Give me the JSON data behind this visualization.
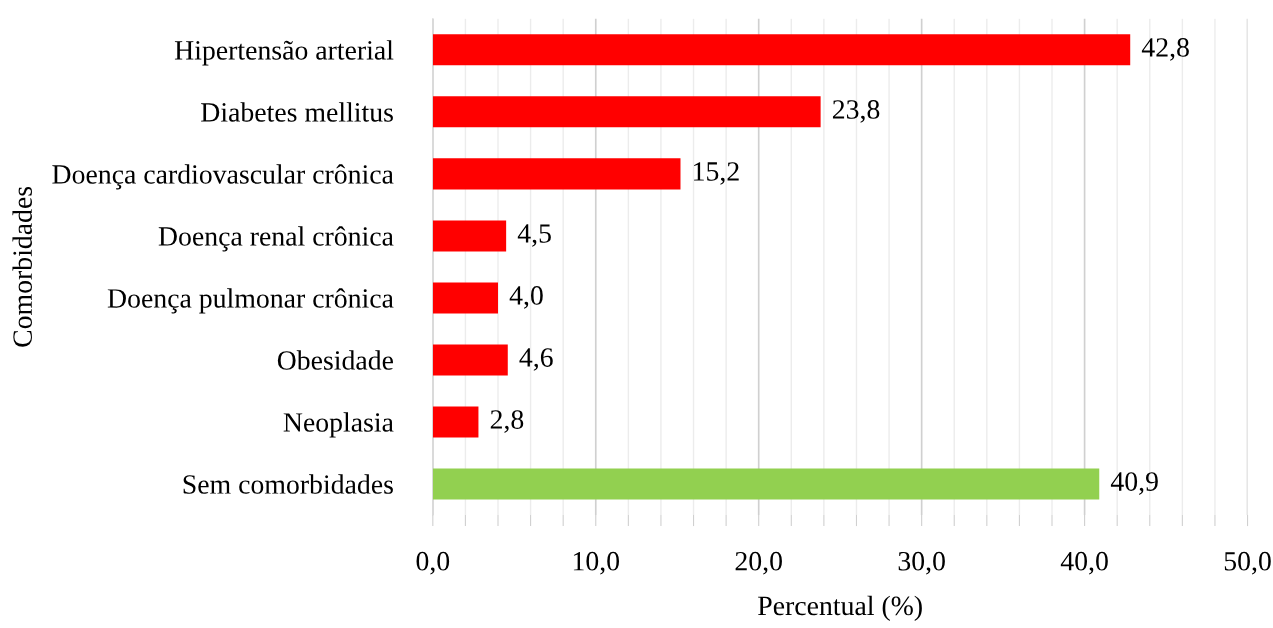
{
  "chart_data": {
    "type": "bar",
    "orientation": "horizontal",
    "xlabel": "Percentual (%)",
    "ylabel": "Comorbidades",
    "categories": [
      "Hipertensão arterial",
      "Diabetes mellitus",
      "Doença cardiovascular crônica",
      "Doença renal crônica",
      "Doença pulmonar crônica",
      "Obesidade",
      "Neoplasia",
      "Sem comorbidades"
    ],
    "values": [
      42.8,
      23.8,
      15.2,
      4.5,
      4.0,
      4.6,
      2.8,
      40.9
    ],
    "colors": [
      "#ff0000",
      "#ff0000",
      "#ff0000",
      "#ff0000",
      "#ff0000",
      "#ff0000",
      "#ff0000",
      "#92d050"
    ],
    "value_labels": [
      "42,8",
      "23,8",
      "15,2",
      "4,5",
      "4,0",
      "4,6",
      "2,8",
      "40,9"
    ],
    "xlim": [
      0,
      50
    ],
    "xticks": [
      {
        "value": 0,
        "label": "0,0"
      },
      {
        "value": 2,
        "label": null
      },
      {
        "value": 4,
        "label": null
      },
      {
        "value": 6,
        "label": null
      },
      {
        "value": 8,
        "label": null
      },
      {
        "value": 10,
        "label": "10,0"
      },
      {
        "value": 12,
        "label": null
      },
      {
        "value": 14,
        "label": null
      },
      {
        "value": 16,
        "label": null
      },
      {
        "value": 18,
        "label": null
      },
      {
        "value": 20,
        "label": "20,0"
      },
      {
        "value": 22,
        "label": null
      },
      {
        "value": 24,
        "label": null
      },
      {
        "value": 26,
        "label": null
      },
      {
        "value": 28,
        "label": null
      },
      {
        "value": 30,
        "label": "30,0"
      },
      {
        "value": 32,
        "label": null
      },
      {
        "value": 34,
        "label": null
      },
      {
        "value": 36,
        "label": null
      },
      {
        "value": 38,
        "label": null
      },
      {
        "value": 40,
        "label": "40,0"
      },
      {
        "value": 42,
        "label": null
      },
      {
        "value": 44,
        "label": null
      },
      {
        "value": 46,
        "label": null
      },
      {
        "value": 48,
        "label": null
      },
      {
        "value": 50,
        "label": "50,0"
      }
    ],
    "grid": "x",
    "legend": false
  }
}
